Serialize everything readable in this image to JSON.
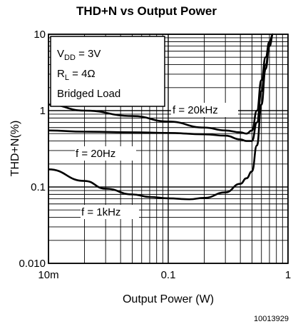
{
  "chart_data": {
    "type": "line",
    "title": "THD+N vs Output Power",
    "xlabel": "Output Power (W)",
    "ylabel": "THD+N(%)",
    "x_scale": "log",
    "y_scale": "log",
    "xlim": [
      0.01,
      1
    ],
    "ylim": [
      0.01,
      10
    ],
    "x_ticks": [
      {
        "value": 0.01,
        "label": "10m"
      },
      {
        "value": 0.1,
        "label": "0.1"
      },
      {
        "value": 1,
        "label": "1"
      }
    ],
    "y_ticks": [
      {
        "value": 0.01,
        "label": "0.010"
      },
      {
        "value": 0.1,
        "label": "0.1"
      },
      {
        "value": 1,
        "label": "1"
      },
      {
        "value": 10,
        "label": "10"
      }
    ],
    "grid": true,
    "conditions": [
      "V",
      "DD",
      " = 3V",
      "R",
      "L",
      " =  4Ω",
      "Bridged Load"
    ],
    "series": [
      {
        "name": "f = 20kHz",
        "x": [
          0.01,
          0.02,
          0.05,
          0.1,
          0.2,
          0.3,
          0.4,
          0.45,
          0.5,
          0.55,
          0.6,
          0.65,
          0.7,
          0.75
        ],
        "y": [
          1.2,
          1.0,
          0.85,
          0.72,
          0.6,
          0.55,
          0.52,
          0.5,
          0.55,
          1.0,
          2.5,
          5.0,
          8.0,
          10.0
        ]
      },
      {
        "name": "f = 20Hz",
        "x": [
          0.01,
          0.02,
          0.05,
          0.1,
          0.2,
          0.3,
          0.4,
          0.45,
          0.5,
          0.55,
          0.6,
          0.65,
          0.7,
          0.75
        ],
        "y": [
          0.55,
          0.53,
          0.52,
          0.51,
          0.49,
          0.47,
          0.42,
          0.4,
          0.4,
          0.7,
          1.8,
          4.0,
          7.0,
          10.0
        ]
      },
      {
        "name": "f = 1kHz",
        "x": [
          0.01,
          0.02,
          0.03,
          0.05,
          0.07,
          0.1,
          0.15,
          0.2,
          0.3,
          0.4,
          0.45,
          0.5,
          0.55,
          0.6,
          0.65,
          0.7,
          0.75
        ],
        "y": [
          0.17,
          0.12,
          0.095,
          0.08,
          0.074,
          0.071,
          0.069,
          0.072,
          0.085,
          0.11,
          0.13,
          0.16,
          0.35,
          1.2,
          3.5,
          7.0,
          10.0
        ]
      }
    ],
    "annotations": [
      "f = 20kHz",
      "f = 20Hz",
      "f = 1kHz"
    ]
  },
  "figure_id": "10013929"
}
